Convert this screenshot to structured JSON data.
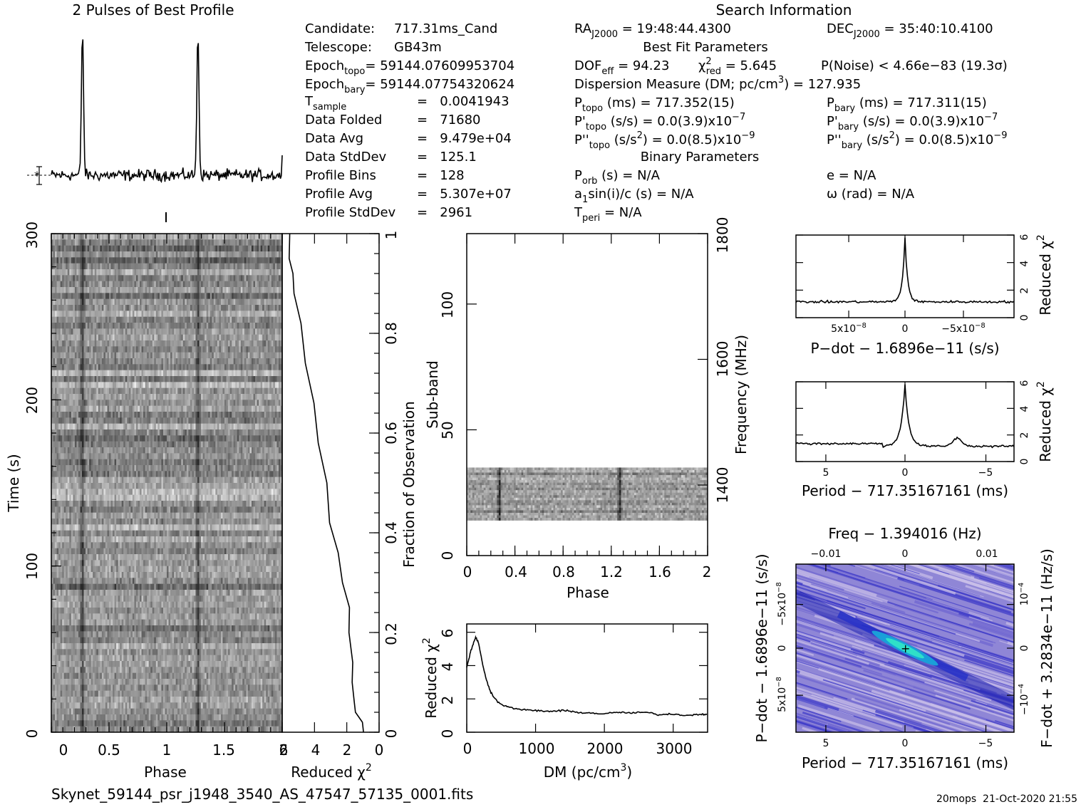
{
  "header": {
    "profile_title": "2 Pulses of Best Profile",
    "search_title": "Search Information",
    "filename": "Skynet_59144_psr_j1948_3540_AS_47547_57135_0001.fits",
    "stamp": "20mops  21-Oct-2020 21:55"
  },
  "info_col1": [
    {
      "label": "Candidate:",
      "value": "717.31ms_Cand"
    },
    {
      "label": "Telescope:",
      "value": "GB43m"
    },
    {
      "label": "Epoch",
      "sub": "topo",
      "value": "= 59144.07609953704"
    },
    {
      "label": "Epoch",
      "sub": "bary",
      "value": "= 59144.07754320624"
    },
    {
      "label": "T",
      "sub": "sample",
      "value": "=   0.0041943"
    },
    {
      "label": "Data Folded",
      "value": "=   71680"
    },
    {
      "label": "Data Avg",
      "value": "=   9.479e+04"
    },
    {
      "label": "Data StdDev",
      "value": "=   125.1"
    },
    {
      "label": "Profile Bins",
      "value": "=   128"
    },
    {
      "label": "Profile Avg",
      "value": "=   5.307e+07"
    },
    {
      "label": "Profile StdDev",
      "value": "=   2961"
    }
  ],
  "info_col2": {
    "ra": "RA",
    "ra_sub": "J2000",
    "ra_val": " = 19:48:44.4300",
    "dec": "DEC",
    "dec_sub": "J2000",
    "dec_val": " = 35:40:10.4100",
    "best_fit": "Best Fit Parameters",
    "dof": "DOF",
    "dof_sub": "eff",
    "dof_val": " = 94.23",
    "chi": "χ",
    "chi_sup": "2",
    "chi_sub": "red",
    "chi_val": " = 5.645",
    "pnoise": "P(Noise) < 4.66e−83   (19.3σ)",
    "dm": "Dispersion Measure (DM; pc/cm",
    "dm_sup": "3",
    "dm_val": ") = 127.935",
    "ptopo": "P",
    "ptopo_sub": "topo",
    "ptopo_val": " (ms)  =  717.352(15)",
    "pbary": "P",
    "pbary_sub": "bary",
    "pbary_val": " (ms)  =  717.311(15)",
    "pdtopo": "P'",
    "pdtopo_sub": "topo",
    "pdtopo_val": " (s/s) = 0.0(3.9)x10",
    "pdtopo_exp": "−7",
    "pdbary": "P'",
    "pdbary_sub": "bary",
    "pdbary_val": " (s/s) = 0.0(3.9)x10",
    "pdbary_exp": "−7",
    "pddtopo": "P''",
    "pddtopo_sub": "topo",
    "pddtopo_val": " (s/s",
    "pddtopo_sup": "2",
    "pddtopo_val2": ") = 0.0(8.5)x10",
    "pddtopo_exp": "−9",
    "pddbary": "P''",
    "pddbary_sub": "bary",
    "pddbary_val": " (s/s",
    "pddbary_sup": "2",
    "pddbary_val2": ") = 0.0(8.5)x10",
    "pddbary_exp": "−9",
    "binary": "Binary Parameters",
    "porb": "P",
    "porb_sub": "orb",
    "porb_val": " (s) = N/A",
    "ecc": "e = N/A",
    "a1": "a",
    "a1_sub": "1",
    "a1_val": "sin(i)/c (s) = N/A",
    "omega": "ω (rad) = N/A",
    "tperi": "T",
    "tperi_sub": "peri",
    "tperi_val": " = N/A"
  },
  "chart_data": [
    {
      "type": "line",
      "title": "2 Pulses of Best Profile",
      "xlim": [
        0,
        2
      ],
      "pulse_phases": [
        0.27,
        1.27
      ],
      "note": "two-cycle pulse profile with noise baseline"
    },
    {
      "type": "heatmap",
      "name": "time-phase",
      "xlabel": "Phase",
      "ylabel": "Time (s)",
      "xlim": [
        0,
        2
      ],
      "ylim": [
        0,
        300
      ],
      "xticks": [
        "0",
        "0.5",
        "1",
        "1.5",
        "2"
      ],
      "yticks": [
        "0",
        "100",
        "200",
        "300"
      ]
    },
    {
      "type": "line",
      "name": "reduced-chi2-vs-fraction",
      "xlabel": "Reduced χ",
      "xlabel_sup": "2",
      "ylabel": "Fraction of Observation",
      "xlim": [
        6,
        0
      ],
      "ylim": [
        0,
        1
      ],
      "xticks": [
        "6",
        "4",
        "2",
        "0"
      ],
      "yticks": [
        "0",
        "0.2",
        "0.4",
        "0.6",
        "0.8",
        "1"
      ]
    },
    {
      "type": "heatmap",
      "name": "subband-phase",
      "xlabel": "Phase",
      "ylabel": "Sub-band",
      "y2label": "Frequency (MHz)",
      "xlim": [
        0,
        2
      ],
      "ylim": [
        0,
        128
      ],
      "xticks": [
        "0",
        "0.4",
        "0.8",
        "1.2",
        "1.6",
        "2"
      ],
      "yticks": [
        "0",
        "50",
        "100"
      ],
      "y2ticks": [
        "1400",
        "1600",
        "1800"
      ],
      "band_subbands": [
        14,
        35
      ]
    },
    {
      "type": "line",
      "name": "dm-curve",
      "xlabel": "DM (pc/cm",
      "xlabel_sup": "3",
      "xlabel_end": ")",
      "ylabel": "Reduced χ",
      "ylabel_sup": "2",
      "xlim": [
        0,
        3500
      ],
      "ylim": [
        0,
        6.5
      ],
      "xticks": [
        "0",
        "1000",
        "2000",
        "3000"
      ],
      "yticks": [
        "0",
        "2",
        "4",
        "6"
      ],
      "x": [
        0,
        60,
        128,
        170,
        220,
        280,
        350,
        450,
        600,
        800,
        1000,
        1200,
        1400,
        1600,
        1800,
        2000,
        2200,
        2400,
        2600,
        2800,
        3000,
        3200,
        3400,
        3500
      ],
      "y": [
        3.9,
        4.9,
        5.7,
        5.4,
        4.3,
        3.2,
        2.4,
        1.8,
        1.5,
        1.35,
        1.3,
        1.25,
        1.3,
        1.2,
        1.15,
        1.1,
        1.2,
        1.15,
        1.2,
        1.05,
        1.1,
        1.0,
        1.1,
        1.05
      ]
    },
    {
      "type": "line",
      "name": "pdot-curve",
      "xlabel": "P−dot − 1.6896e−11 (s/s)",
      "ylabel": "Reduced χ",
      "ylabel_sup": "2",
      "xlim": [
        1e-07,
        -1e-07
      ],
      "ylim": [
        0,
        6
      ],
      "xticks": [
        "5x10",
        "0",
        "−5x10"
      ],
      "xtick_exp": "−8",
      "yticks": [
        "0",
        "2",
        "4",
        "6"
      ]
    },
    {
      "type": "line",
      "name": "period-curve",
      "xlabel": "Period − 717.35167161 (ms)",
      "ylabel": "Reduced χ",
      "ylabel_sup": "2",
      "xlim": [
        7,
        -7
      ],
      "ylim": [
        0,
        6
      ],
      "xticks": [
        "5",
        "0",
        "−5"
      ],
      "yticks": [
        "0",
        "2",
        "4",
        "6"
      ]
    },
    {
      "type": "heatmap",
      "name": "p-pdot",
      "title": "Freq − 1.394016 (Hz)",
      "xlabel": "Period − 717.35167161 (ms)",
      "ylabel": "P−dot − 1.6896e−11 (s/s)",
      "y2label": "F−dot + 3.2834e−11 (Hz/s)",
      "xticks": [
        "5",
        "0",
        "−5"
      ],
      "x2ticks": [
        "−0.01",
        "0",
        "0.01"
      ],
      "yticks": [
        "−5x10",
        "0",
        "5x10"
      ],
      "ytick_exp": "−8",
      "y2ticks": [
        "10",
        "0",
        "−10"
      ],
      "y2tick_exp": "−4"
    }
  ]
}
